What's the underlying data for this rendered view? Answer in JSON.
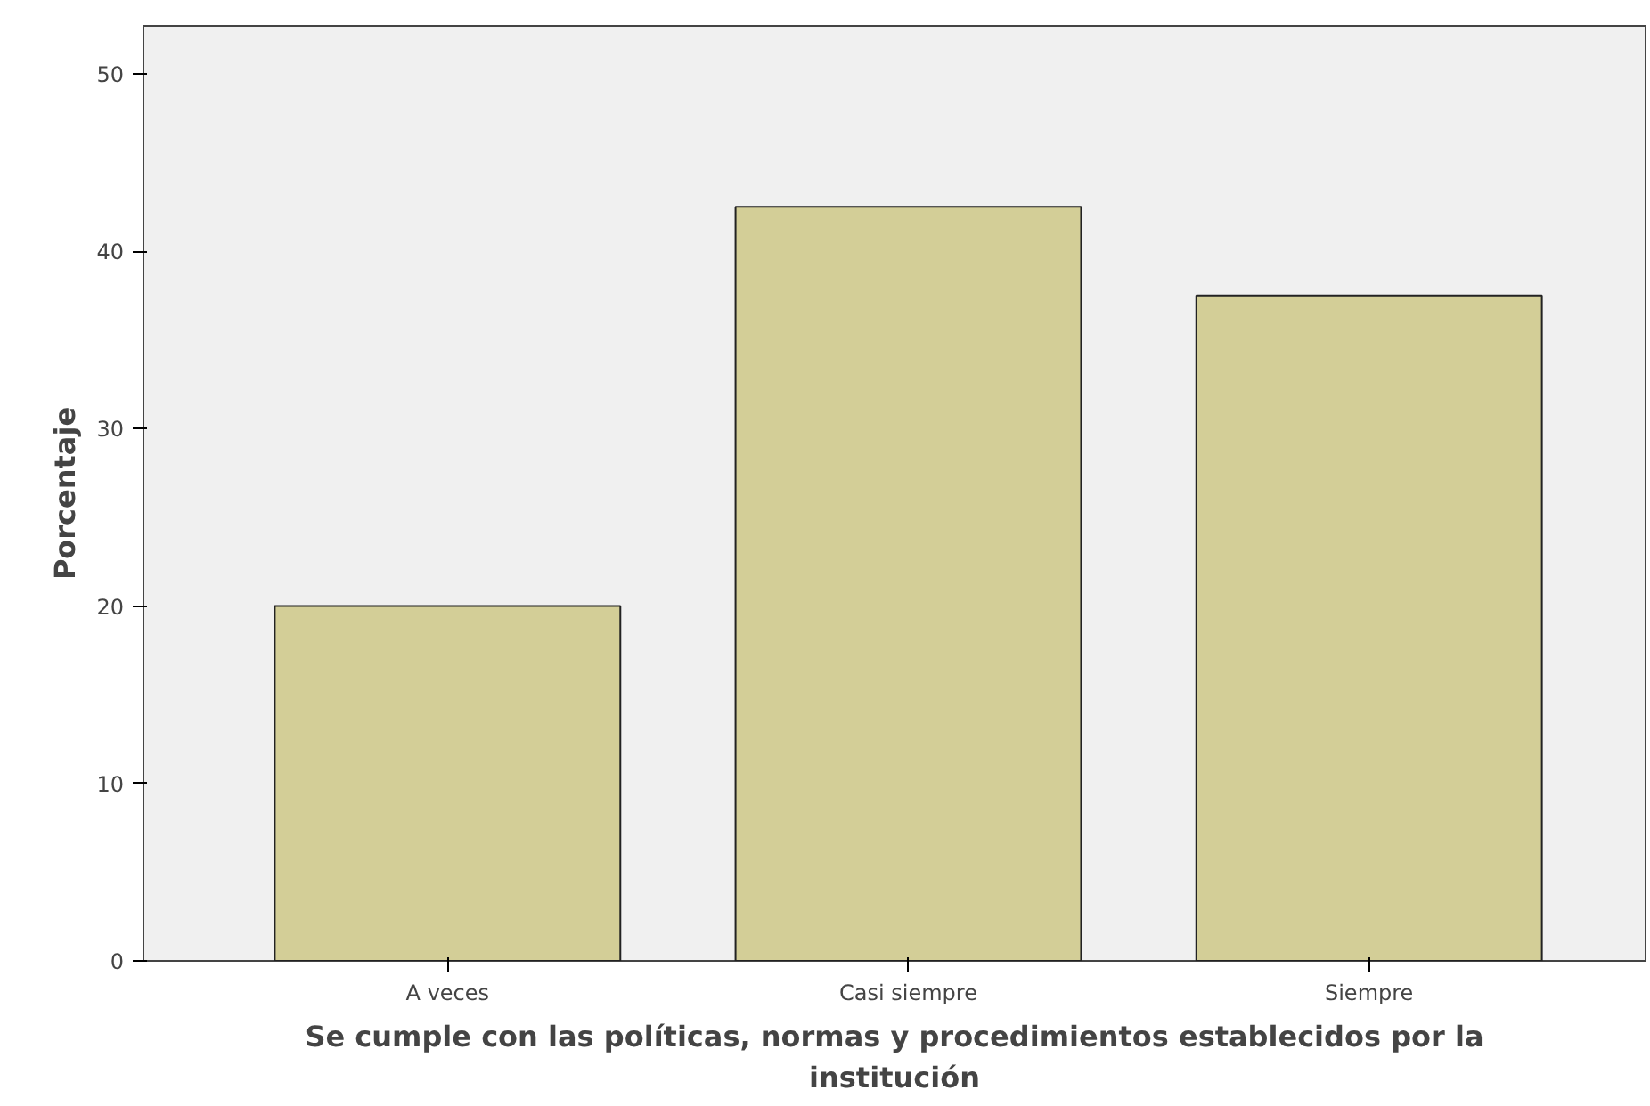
{
  "chart_data": {
    "type": "bar",
    "xlabel": "Se cumple con las políticas, normas y procedimientos establecidos por la institución",
    "ylabel": "Porcentaje",
    "categories": [
      "A veces",
      "Casi siempre",
      "Siempre"
    ],
    "values": [
      20,
      42.5,
      37.5
    ],
    "color": "#d3ce97",
    "ylim": [
      0,
      52.7
    ],
    "yticks": [
      0,
      10,
      20,
      30,
      40,
      50
    ],
    "grid": false
  }
}
